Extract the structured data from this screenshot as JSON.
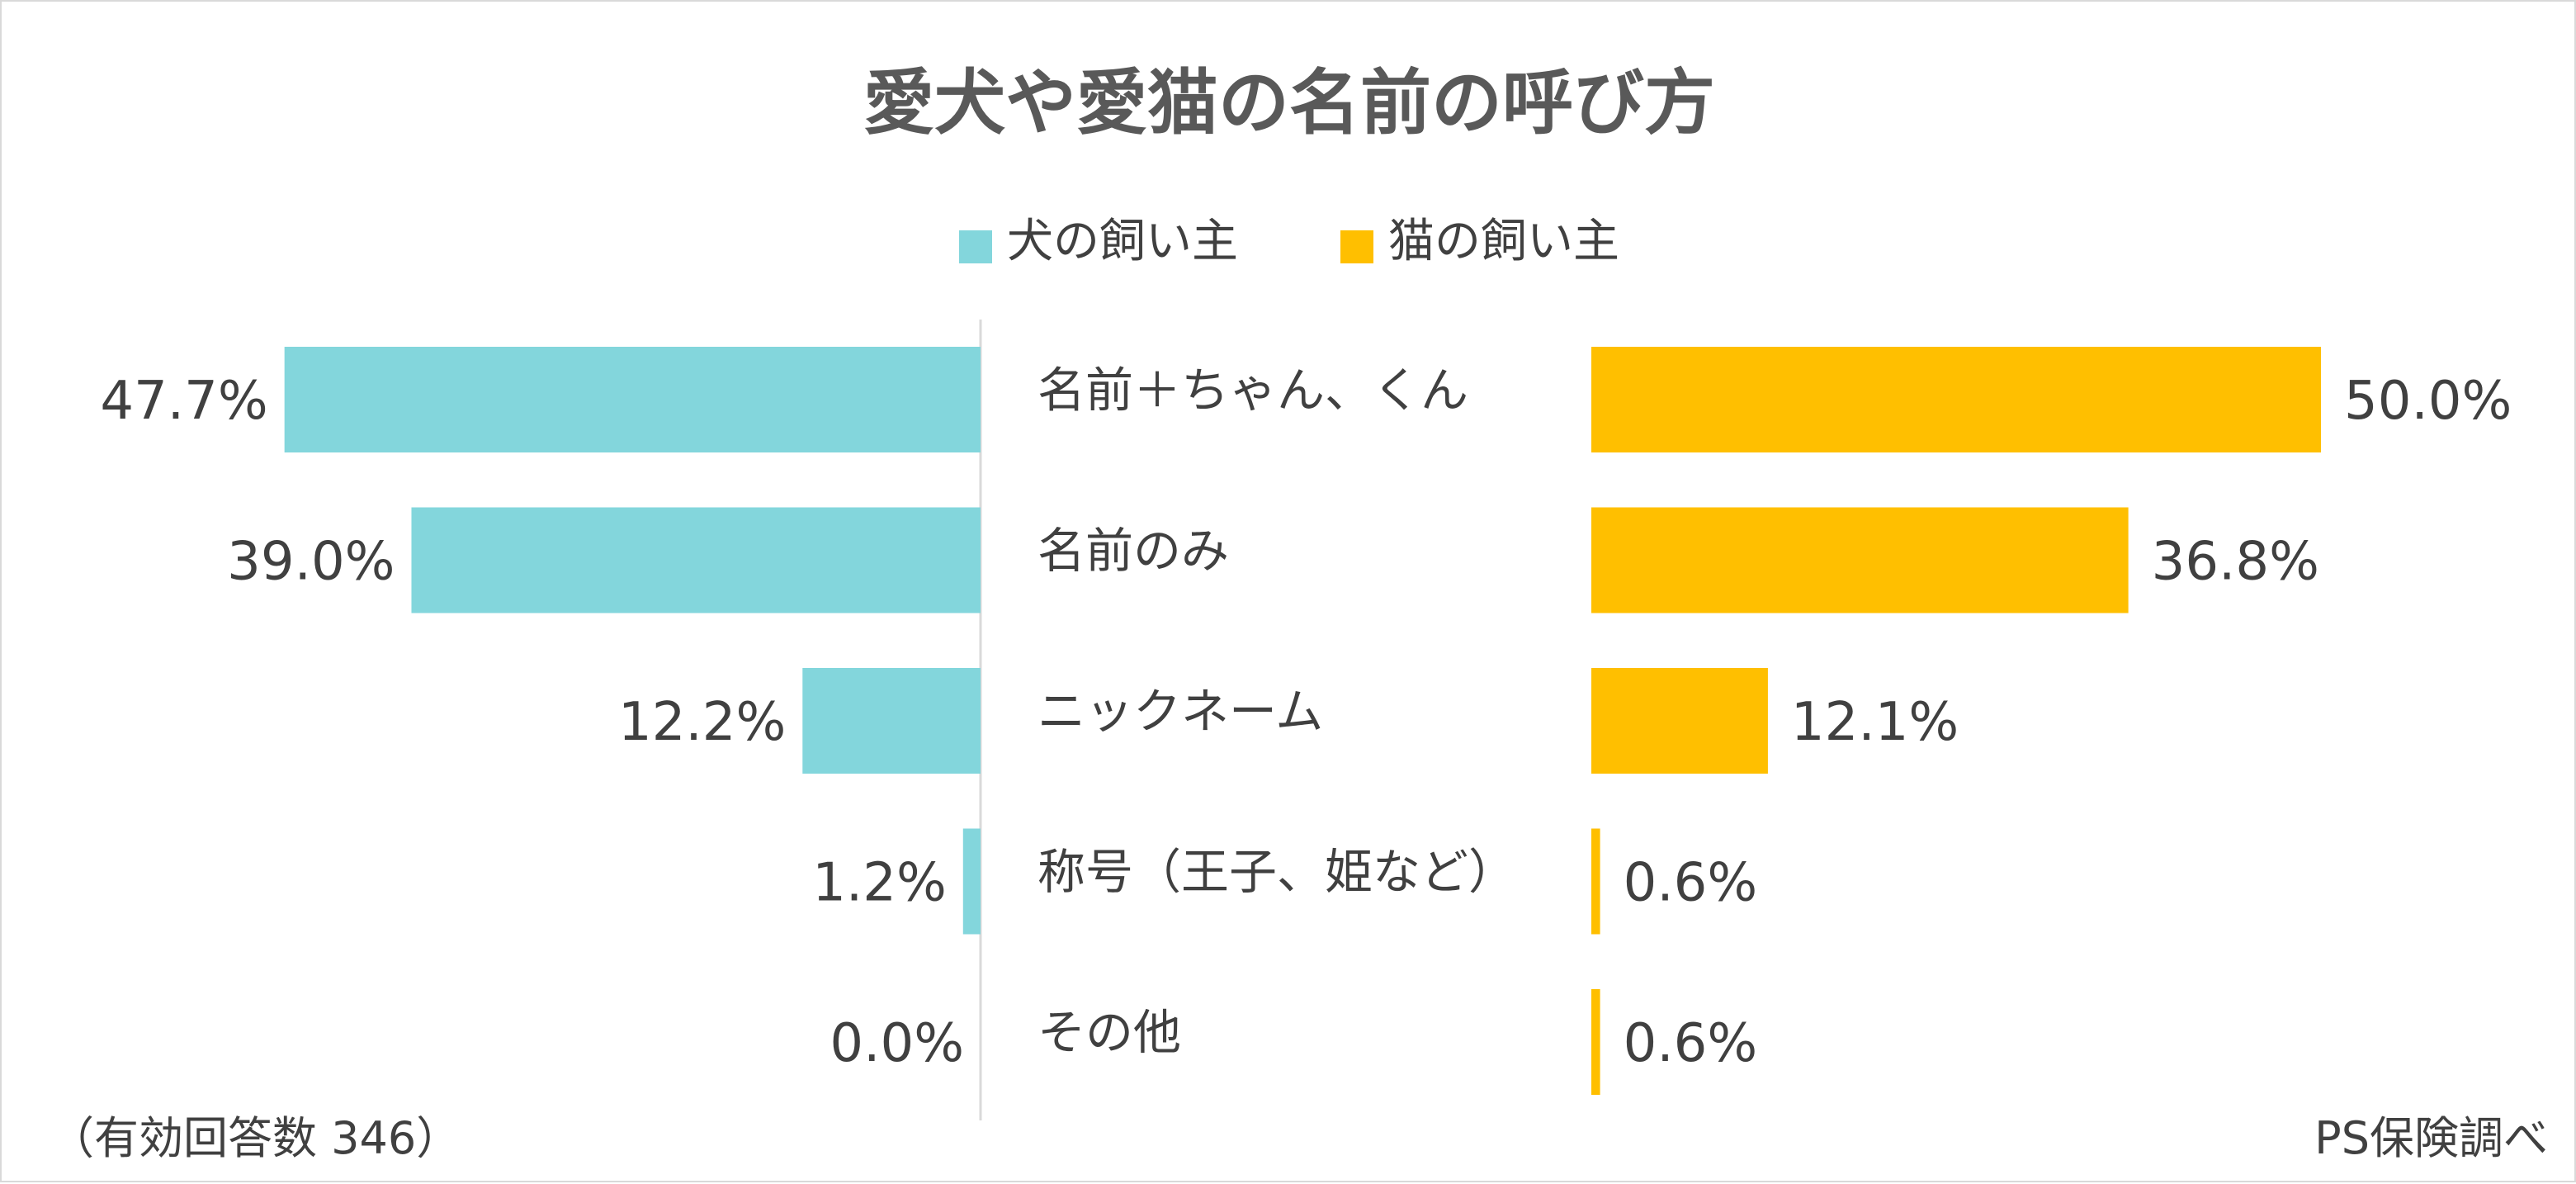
{
  "chart_data": {
    "type": "bar",
    "title": "愛犬や愛猫の名前の呼び方",
    "categories": [
      "名前＋ちゃん、くん",
      "名前のみ",
      "ニックネーム",
      "称号（王子、姫など）",
      "その他"
    ],
    "series": [
      {
        "name": "犬の飼い主",
        "color": "#83D6DC",
        "values": [
          47.7,
          39.0,
          12.2,
          1.2,
          0.0
        ],
        "value_labels": [
          "47.7%",
          "39.0%",
          "12.2%",
          "1.2%",
          "0.0%"
        ]
      },
      {
        "name": "猫の飼い主",
        "color": "#FFBF00",
        "values": [
          50.0,
          36.8,
          12.1,
          0.6,
          0.6
        ],
        "value_labels": [
          "50.0%",
          "36.8%",
          "12.1%",
          "0.6%",
          "0.6%"
        ]
      }
    ],
    "legend_position": "top",
    "grid": false,
    "xlim": [
      0,
      50
    ]
  },
  "notes": {
    "sample": "（有効回答数 346）",
    "source": "PS保険調べ"
  }
}
